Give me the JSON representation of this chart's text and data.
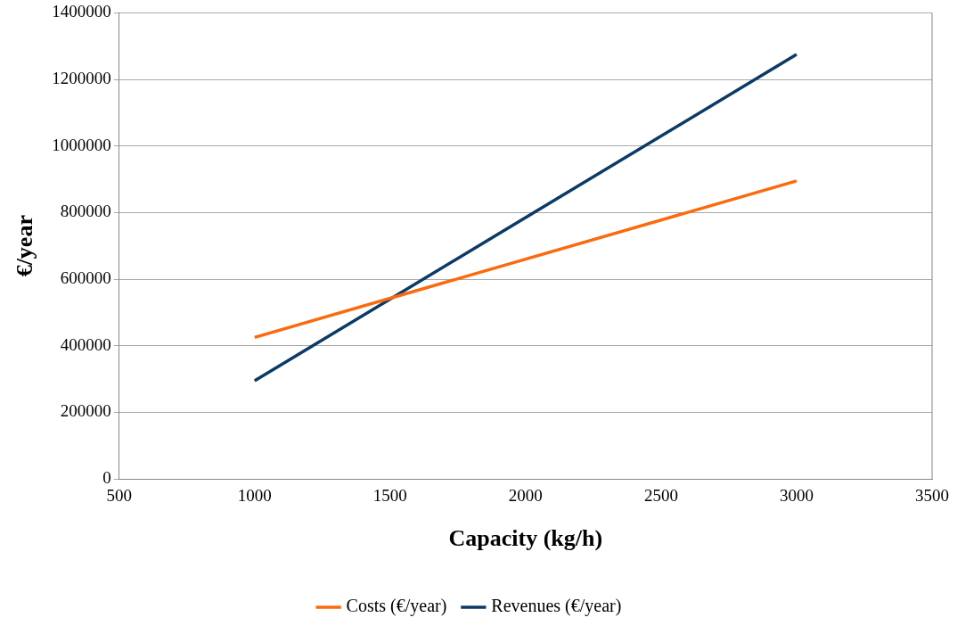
{
  "chart_data": {
    "type": "line",
    "xlabel": "Capacity (kg/h)",
    "ylabel": "€/year",
    "x": [
      1000,
      3000
    ],
    "series": [
      {
        "name": "Costs (€/year)",
        "color": "#fb6a0c",
        "values": [
          425000,
          895000
        ]
      },
      {
        "name": "Revenues (€/year)",
        "color": "#0b3a66",
        "values": [
          295000,
          1275000
        ]
      }
    ],
    "xlim": [
      500,
      3500
    ],
    "xticks": [
      500,
      1000,
      1500,
      2000,
      2500,
      3000,
      3500
    ],
    "ylim": [
      0,
      1400000
    ],
    "yticks": [
      0,
      200000,
      400000,
      600000,
      800000,
      1000000,
      1200000,
      1400000
    ],
    "grid": "y",
    "legend": "bottom",
    "marker": "none",
    "line_style": "solid"
  }
}
